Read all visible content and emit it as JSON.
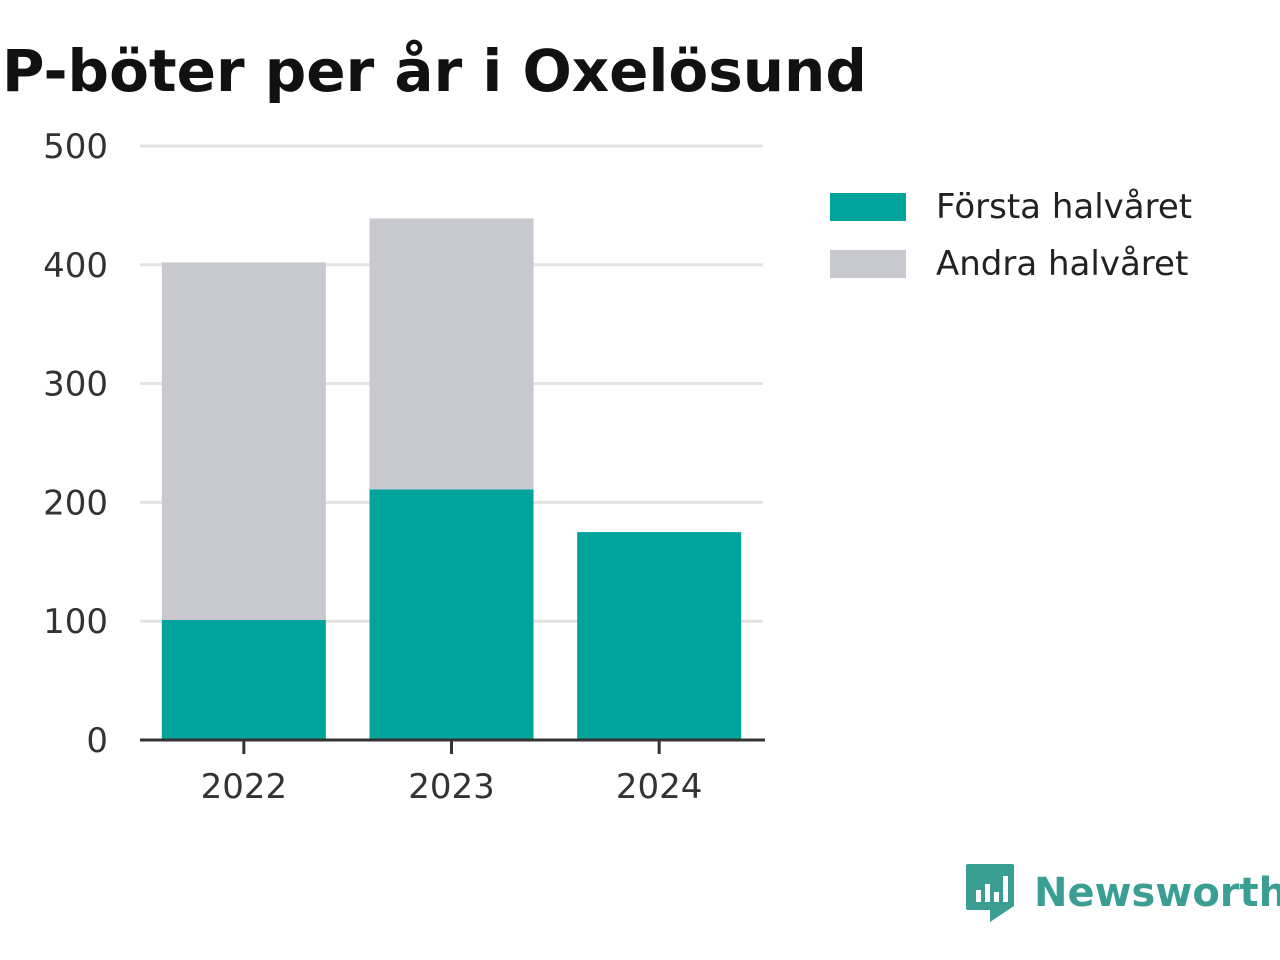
{
  "chart_data": {
    "type": "bar",
    "stacked": true,
    "title": "P-böter per år i Oxelösund",
    "categories": [
      "2022",
      "2023",
      "2024"
    ],
    "series": [
      {
        "name": "Första halvåret",
        "values": [
          101,
          211,
          175
        ],
        "color": "#00a49b"
      },
      {
        "name": "Andra halvåret",
        "values": [
          301,
          228,
          0
        ],
        "color": "#c8c8cf"
      }
    ],
    "xlabel": "",
    "ylabel": "",
    "ylim": [
      0,
      500
    ],
    "yticks": [
      "0",
      "100",
      "200",
      "300",
      "400",
      "500"
    ],
    "grid": true,
    "legend_position": "right"
  },
  "brand": {
    "name": "Newsworthy",
    "color": "#3a9e93",
    "icon": "newsworthy-logo-icon"
  }
}
